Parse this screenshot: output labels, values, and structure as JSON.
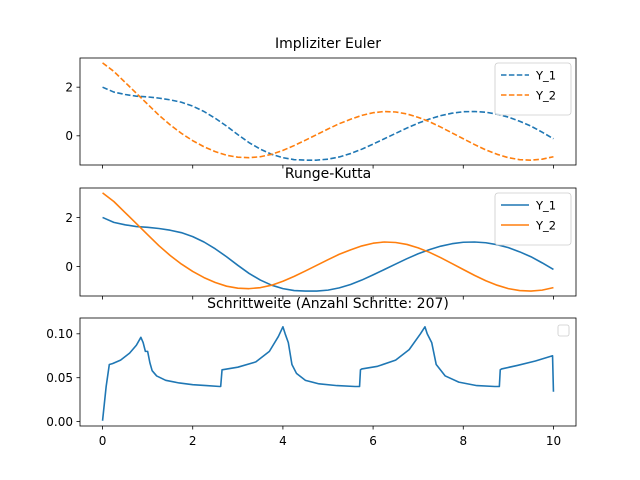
{
  "chart_data": [
    {
      "type": "line",
      "title": "Impliziter Euler",
      "xlim": [
        -0.5,
        10.5
      ],
      "ylim": [
        -1.2,
        3.2
      ],
      "xticks": [
        0,
        2,
        4,
        6,
        8,
        10
      ],
      "show_xtick_labels": false,
      "yticks": [
        0,
        2
      ],
      "legend_position": "upper-right",
      "series": [
        {
          "name": "Y_1",
          "color": "#1f77b4",
          "style": "dashed",
          "x": [
            0.0,
            0.25,
            0.5,
            0.75,
            1.0,
            1.25,
            1.5,
            1.75,
            2.0,
            2.25,
            2.5,
            2.75,
            3.0,
            3.25,
            3.5,
            3.75,
            4.0,
            4.25,
            4.5,
            4.75,
            5.0,
            5.25,
            5.5,
            5.75,
            6.0,
            6.25,
            6.5,
            6.75,
            7.0,
            7.25,
            7.5,
            7.75,
            8.0,
            8.25,
            8.5,
            8.75,
            9.0,
            9.25,
            9.5,
            9.75,
            10.0
          ],
          "values": [
            2.0,
            1.8,
            1.7,
            1.63,
            1.6,
            1.55,
            1.48,
            1.38,
            1.22,
            1.0,
            0.72,
            0.4,
            0.05,
            -0.28,
            -0.55,
            -0.76,
            -0.9,
            -0.98,
            -1.0,
            -1.0,
            -0.96,
            -0.87,
            -0.73,
            -0.55,
            -0.34,
            -0.12,
            0.1,
            0.32,
            0.52,
            0.69,
            0.83,
            0.93,
            0.99,
            1.0,
            0.97,
            0.89,
            0.77,
            0.6,
            0.4,
            0.15,
            -0.12
          ]
        },
        {
          "name": "Y_2",
          "color": "#ff7f0e",
          "style": "dashed",
          "x": [
            0.0,
            0.25,
            0.5,
            0.75,
            1.0,
            1.25,
            1.5,
            1.75,
            2.0,
            2.25,
            2.5,
            2.75,
            3.0,
            3.25,
            3.5,
            3.75,
            4.0,
            4.25,
            4.5,
            4.75,
            5.0,
            5.25,
            5.5,
            5.75,
            6.0,
            6.25,
            6.5,
            6.75,
            7.0,
            7.25,
            7.5,
            7.75,
            8.0,
            8.25,
            8.5,
            8.75,
            9.0,
            9.25,
            9.5,
            9.75,
            10.0
          ],
          "values": [
            3.0,
            2.65,
            2.2,
            1.75,
            1.3,
            0.85,
            0.45,
            0.1,
            -0.2,
            -0.45,
            -0.65,
            -0.8,
            -0.88,
            -0.9,
            -0.86,
            -0.76,
            -0.6,
            -0.4,
            -0.18,
            0.05,
            0.28,
            0.5,
            0.68,
            0.84,
            0.95,
            1.0,
            0.98,
            0.9,
            0.76,
            0.58,
            0.36,
            0.12,
            -0.12,
            -0.36,
            -0.58,
            -0.76,
            -0.9,
            -0.98,
            -1.0,
            -0.96,
            -0.86
          ]
        }
      ]
    },
    {
      "type": "line",
      "title": "Runge-Kutta",
      "xlim": [
        -0.5,
        10.5
      ],
      "ylim": [
        -1.2,
        3.2
      ],
      "xticks": [
        0,
        2,
        4,
        6,
        8,
        10
      ],
      "show_xtick_labels": false,
      "yticks": [
        0,
        2
      ],
      "legend_position": "upper-right",
      "series": [
        {
          "name": "Y_1",
          "color": "#1f77b4",
          "style": "solid",
          "x": [
            0.0,
            0.25,
            0.5,
            0.75,
            1.0,
            1.25,
            1.5,
            1.75,
            2.0,
            2.25,
            2.5,
            2.75,
            3.0,
            3.25,
            3.5,
            3.75,
            4.0,
            4.25,
            4.5,
            4.75,
            5.0,
            5.25,
            5.5,
            5.75,
            6.0,
            6.25,
            6.5,
            6.75,
            7.0,
            7.25,
            7.5,
            7.75,
            8.0,
            8.25,
            8.5,
            8.75,
            9.0,
            9.25,
            9.5,
            9.75,
            10.0
          ],
          "values": [
            2.0,
            1.8,
            1.7,
            1.63,
            1.6,
            1.55,
            1.48,
            1.38,
            1.22,
            1.0,
            0.72,
            0.4,
            0.05,
            -0.28,
            -0.55,
            -0.76,
            -0.9,
            -0.98,
            -1.0,
            -1.0,
            -0.96,
            -0.87,
            -0.73,
            -0.55,
            -0.34,
            -0.12,
            0.1,
            0.32,
            0.52,
            0.69,
            0.83,
            0.93,
            0.99,
            1.0,
            0.97,
            0.89,
            0.77,
            0.6,
            0.4,
            0.15,
            -0.12
          ]
        },
        {
          "name": "Y_2",
          "color": "#ff7f0e",
          "style": "solid",
          "x": [
            0.0,
            0.25,
            0.5,
            0.75,
            1.0,
            1.25,
            1.5,
            1.75,
            2.0,
            2.25,
            2.5,
            2.75,
            3.0,
            3.25,
            3.5,
            3.75,
            4.0,
            4.25,
            4.5,
            4.75,
            5.0,
            5.25,
            5.5,
            5.75,
            6.0,
            6.25,
            6.5,
            6.75,
            7.0,
            7.25,
            7.5,
            7.75,
            8.0,
            8.25,
            8.5,
            8.75,
            9.0,
            9.25,
            9.5,
            9.75,
            10.0
          ],
          "values": [
            3.0,
            2.65,
            2.2,
            1.75,
            1.3,
            0.85,
            0.45,
            0.1,
            -0.2,
            -0.45,
            -0.65,
            -0.8,
            -0.88,
            -0.9,
            -0.86,
            -0.76,
            -0.6,
            -0.4,
            -0.18,
            0.05,
            0.28,
            0.5,
            0.68,
            0.84,
            0.95,
            1.0,
            0.98,
            0.9,
            0.76,
            0.58,
            0.36,
            0.12,
            -0.12,
            -0.36,
            -0.58,
            -0.76,
            -0.9,
            -0.98,
            -1.0,
            -0.96,
            -0.86
          ]
        }
      ]
    },
    {
      "type": "line",
      "title": "Schrittweite (Anzahl Schritte: 207)",
      "xlim": [
        -0.5,
        10.5
      ],
      "ylim": [
        -0.005,
        0.118
      ],
      "xticks": [
        0,
        2,
        4,
        6,
        8,
        10
      ],
      "show_xtick_labels": true,
      "yticks": [
        0.0,
        0.05,
        0.1
      ],
      "ytick_format": "2",
      "legend_position": "upper-right",
      "legend_empty": true,
      "series": [
        {
          "name": "",
          "color": "#1f77b4",
          "style": "solid",
          "x": [
            0.0,
            0.08,
            0.15,
            0.22,
            0.4,
            0.6,
            0.75,
            0.85,
            0.9,
            0.95,
            1.0,
            1.05,
            1.1,
            1.2,
            1.4,
            1.7,
            2.0,
            2.3,
            2.6,
            2.62,
            2.65,
            3.0,
            3.4,
            3.7,
            3.9,
            4.0,
            4.05,
            4.12,
            4.2,
            4.3,
            4.5,
            4.8,
            5.2,
            5.6,
            5.7,
            5.72,
            5.75,
            6.1,
            6.5,
            6.8,
            7.05,
            7.15,
            7.2,
            7.3,
            7.4,
            7.6,
            7.9,
            8.3,
            8.7,
            8.8,
            8.82,
            8.85,
            9.2,
            9.6,
            9.98,
            10.0
          ],
          "values": [
            0.001,
            0.04,
            0.065,
            0.066,
            0.07,
            0.078,
            0.087,
            0.096,
            0.09,
            0.08,
            0.08,
            0.067,
            0.058,
            0.052,
            0.047,
            0.044,
            0.042,
            0.041,
            0.04,
            0.04,
            0.059,
            0.062,
            0.068,
            0.08,
            0.097,
            0.108,
            0.1,
            0.09,
            0.065,
            0.055,
            0.047,
            0.043,
            0.041,
            0.04,
            0.04,
            0.059,
            0.06,
            0.063,
            0.07,
            0.082,
            0.1,
            0.108,
            0.1,
            0.09,
            0.065,
            0.052,
            0.045,
            0.041,
            0.04,
            0.04,
            0.059,
            0.06,
            0.064,
            0.069,
            0.075,
            0.034
          ]
        }
      ]
    }
  ]
}
